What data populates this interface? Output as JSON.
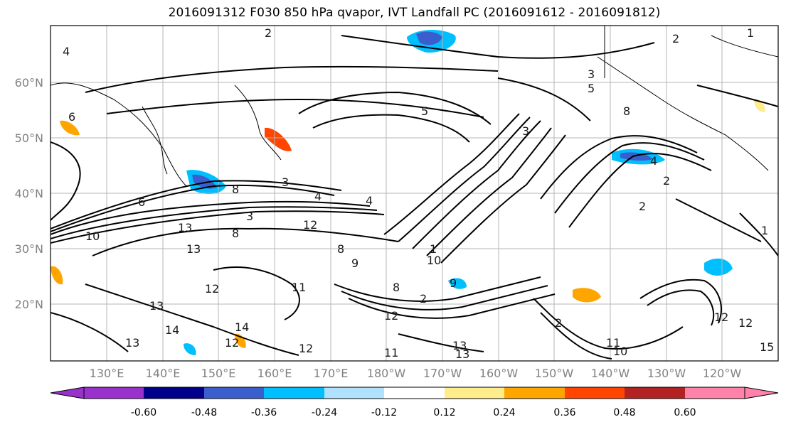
{
  "title": "2016091312 F030 850 hPa qvapor, IVT Landfall PC (2016091612 - 2016091812)",
  "lat_ticks": [
    "60°N",
    "50°N",
    "40°N",
    "30°N",
    "20°N"
  ],
  "lon_ticks": [
    "130°E",
    "140°E",
    "150°E",
    "160°E",
    "170°E",
    "180°W",
    "170°W",
    "160°W",
    "150°W",
    "140°W",
    "130°W",
    "120°W"
  ],
  "colorbar": {
    "colors": [
      "#9932cc",
      "#00008b",
      "#3a5fcd",
      "#00bfff",
      "#b0e2ff",
      "#ffffff",
      "#ffec8b",
      "#ffa500",
      "#ff4500",
      "#b22222",
      "#ff82ab"
    ],
    "ticks": [
      "-0.60",
      "-0.48",
      "-0.36",
      "-0.24",
      "-0.12",
      "0.12",
      "0.24",
      "0.36",
      "0.48",
      "0.60"
    ]
  },
  "contour_labels": [
    "2",
    "2",
    "1",
    "4",
    "3",
    "6",
    "5",
    "3",
    "8",
    "5",
    "8",
    "3",
    "6",
    "4",
    "4",
    "8",
    "2",
    "3",
    "1",
    "2",
    "4",
    "13",
    "10",
    "8",
    "13",
    "12",
    "9",
    "10",
    "11",
    "8",
    "12",
    "2",
    "9",
    "12",
    "13",
    "14",
    "14",
    "13",
    "12",
    "12",
    "11",
    "13",
    "13",
    "2",
    "11",
    "10",
    "12",
    "12",
    "15",
    "1"
  ],
  "colors": {
    "axis_tick": "#808080",
    "frame": "#000000"
  }
}
